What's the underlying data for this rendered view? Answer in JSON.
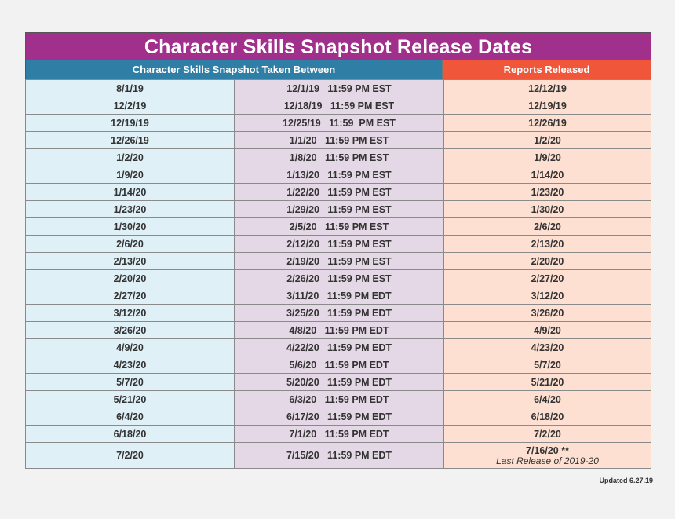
{
  "title": "Character Skills Snapshot Release Dates",
  "headers": {
    "taken_between": "Character Skills Snapshot Taken Between",
    "reports_released": "Reports Released"
  },
  "rows": [
    {
      "start": "8/1/19",
      "end": "12/1/19   11:59 PM EST",
      "released": "12/12/19"
    },
    {
      "start": "12/2/19",
      "end": "12/18/19   11:59 PM EST",
      "released": "12/19/19"
    },
    {
      "start": "12/19/19",
      "end": "12/25/19   11:59  PM EST",
      "released": "12/26/19"
    },
    {
      "start": "12/26/19",
      "end": "1/1/20   11:59 PM EST",
      "released": "1/2/20"
    },
    {
      "start": "1/2/20",
      "end": "1/8/20   11:59 PM EST",
      "released": "1/9/20"
    },
    {
      "start": "1/9/20",
      "end": "1/13/20   11:59 PM EST",
      "released": "1/14/20"
    },
    {
      "start": "1/14/20",
      "end": "1/22/20   11:59 PM EST",
      "released": "1/23/20"
    },
    {
      "start": "1/23/20",
      "end": "1/29/20   11:59 PM EST",
      "released": "1/30/20"
    },
    {
      "start": "1/30/20",
      "end": "2/5/20   11:59 PM EST",
      "released": "2/6/20"
    },
    {
      "start": "2/6/20",
      "end": "2/12/20   11:59 PM EST",
      "released": "2/13/20"
    },
    {
      "start": "2/13/20",
      "end": "2/19/20   11:59 PM EST",
      "released": "2/20/20"
    },
    {
      "start": "2/20/20",
      "end": "2/26/20   11:59 PM EST",
      "released": "2/27/20"
    },
    {
      "start": "2/27/20",
      "end": "3/11/20   11:59 PM EDT",
      "released": "3/12/20"
    },
    {
      "start": "3/12/20",
      "end": "3/25/20   11:59 PM EDT",
      "released": "3/26/20"
    },
    {
      "start": "3/26/20",
      "end": "4/8/20   11:59 PM EDT",
      "released": "4/9/20"
    },
    {
      "start": "4/9/20",
      "end": "4/22/20   11:59 PM EDT",
      "released": "4/23/20"
    },
    {
      "start": "4/23/20",
      "end": "5/6/20   11:59 PM EDT",
      "released": "5/7/20"
    },
    {
      "start": "5/7/20",
      "end": "5/20/20   11:59 PM EDT",
      "released": "5/21/20"
    },
    {
      "start": "5/21/20",
      "end": "6/3/20   11:59 PM EDT",
      "released": "6/4/20"
    },
    {
      "start": "6/4/20",
      "end": "6/17/20   11:59 PM EDT",
      "released": "6/18/20"
    },
    {
      "start": "6/18/20",
      "end": "7/1/20   11:59 PM EDT",
      "released": "7/2/20"
    }
  ],
  "last_row": {
    "start": "7/2/20",
    "end": "7/15/20   11:59 PM EDT",
    "released": "7/16/20 **",
    "note": "Last Release of 2019-20"
  },
  "updated": "Updated 6.27.19"
}
